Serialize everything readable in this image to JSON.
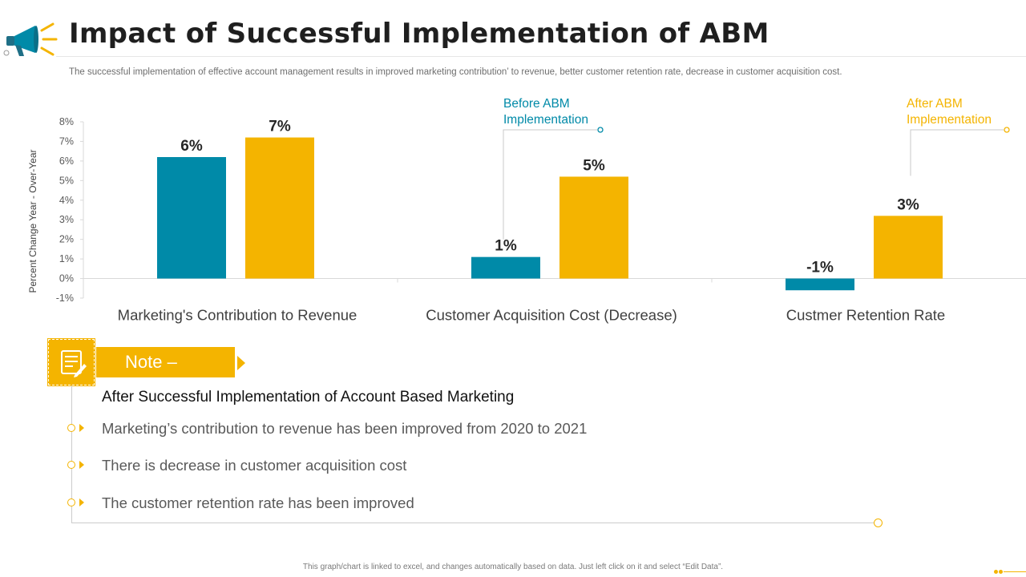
{
  "header": {
    "title": "Impact of Successful Implementation of ABM",
    "subtitle": "The successful implementation of effective account management results in improved marketing contribution’ to revenue, better customer retention rate, decrease in customer acquisition cost."
  },
  "colors": {
    "before": "#008aa8",
    "after": "#f4b400",
    "accent": "#f4b400"
  },
  "chart_data": {
    "type": "bar",
    "title": "",
    "ylabel": "Percent Change  Year - Over-Year",
    "xlabel": "",
    "ylim": [
      -1,
      8
    ],
    "yticks": [
      -1,
      0,
      1,
      2,
      3,
      4,
      5,
      6,
      7,
      8
    ],
    "ytick_labels": [
      "-1%",
      "0%",
      "1%",
      "2%",
      "3%",
      "4%",
      "5%",
      "6%",
      "7%",
      "8%"
    ],
    "categories": [
      "Marketing's Contribution to Revenue",
      "Customer Acquisition Cost (Decrease)",
      "Custmer Retention Rate"
    ],
    "series": [
      {
        "name": "Before ABM Implementation",
        "values": [
          6.2,
          1.1,
          -0.6
        ],
        "labels": [
          "6%",
          "1%",
          "-1%"
        ]
      },
      {
        "name": "After  ABM Implementation",
        "values": [
          7.2,
          5.2,
          3.2
        ],
        "labels": [
          "7%",
          "5%",
          "3%"
        ]
      }
    ],
    "legend": [
      {
        "line1": "Before ABM",
        "line2": "Implementation"
      },
      {
        "line1": "After  ABM",
        "line2": "Implementation"
      }
    ]
  },
  "note": {
    "banner": "Note –",
    "heading": "After Successful Implementation  of Account Based Marketing",
    "bullets": [
      "Marketing’s contribution to revenue has been improved from 2020 to 2021",
      "There is decrease in customer acquisition cost",
      "The customer retention rate has been improved"
    ]
  },
  "footer": "This graph/chart is linked to excel, and changes automatically based on data. Just left click on it and select “Edit Data”."
}
